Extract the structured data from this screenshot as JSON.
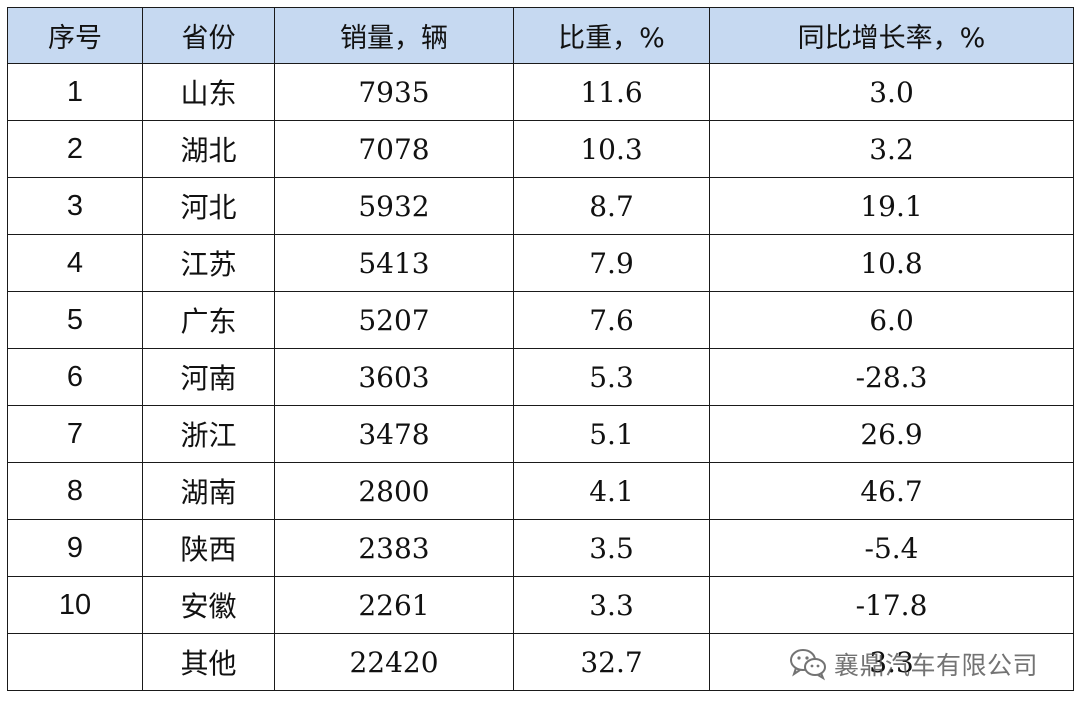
{
  "table": {
    "headers": [
      "序号",
      "省份",
      "销量，辆",
      "比重，%",
      "同比增长率，%"
    ],
    "rows": [
      {
        "index": "1",
        "province": "山东",
        "sales": "7935",
        "share": "11.6",
        "growth": "3.0"
      },
      {
        "index": "2",
        "province": "湖北",
        "sales": "7078",
        "share": "10.3",
        "growth": "3.2"
      },
      {
        "index": "3",
        "province": "河北",
        "sales": "5932",
        "share": "8.7",
        "growth": "19.1"
      },
      {
        "index": "4",
        "province": "江苏",
        "sales": "5413",
        "share": "7.9",
        "growth": "10.8"
      },
      {
        "index": "5",
        "province": "广东",
        "sales": "5207",
        "share": "7.6",
        "growth": "6.0"
      },
      {
        "index": "6",
        "province": "河南",
        "sales": "3603",
        "share": "5.3",
        "growth": "-28.3"
      },
      {
        "index": "7",
        "province": "浙江",
        "sales": "3478",
        "share": "5.1",
        "growth": "26.9"
      },
      {
        "index": "8",
        "province": "湖南",
        "sales": "2800",
        "share": "4.1",
        "growth": "46.7"
      },
      {
        "index": "9",
        "province": "陕西",
        "sales": "2383",
        "share": "3.5",
        "growth": "-5.4"
      },
      {
        "index": "10",
        "province": "安徽",
        "sales": "2261",
        "share": "3.3",
        "growth": "-17.8"
      },
      {
        "index": "",
        "province": "其他",
        "sales": "22420",
        "share": "32.7",
        "growth": "3.3"
      }
    ]
  },
  "watermark": {
    "icon": "wechat-icon",
    "text": "襄鼎汽车有限公司"
  }
}
